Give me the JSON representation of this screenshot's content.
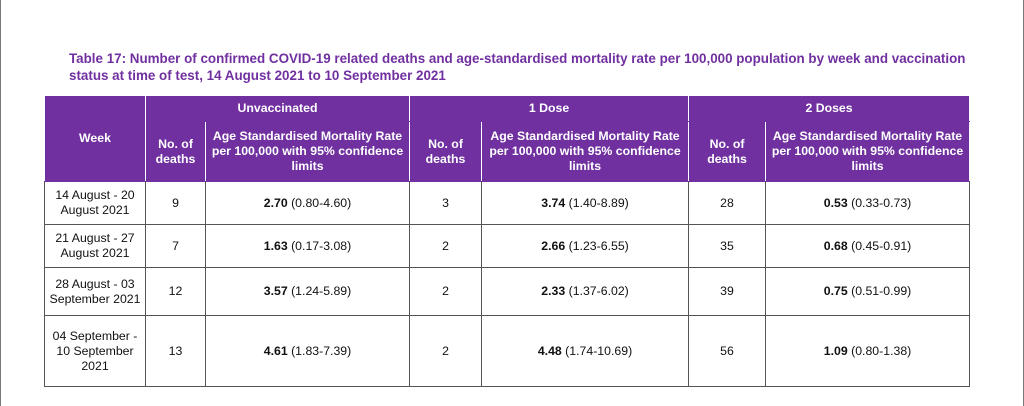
{
  "caption": "Table 17: Number of confirmed COVID-19 related deaths and age-standardised mortality rate per 100,000 population by week and vaccination status at time of test, 14 August 2021 to 10 September 2021",
  "header": {
    "week": "Week",
    "groups": [
      "Unvaccinated",
      "1 Dose",
      "2 Doses"
    ],
    "deaths": "No. of deaths",
    "rate": "Age Standardised Mortality Rate per 100,000 with 95% confidence limits"
  },
  "rows": [
    {
      "week": "14 August - 20 August 2021",
      "unvax_deaths": "9",
      "unvax_rate": "2.70",
      "unvax_ci": " (0.80-4.60)",
      "dose1_deaths": "3",
      "dose1_rate": "3.74",
      "dose1_ci": " (1.40-8.89)",
      "dose2_deaths": "28",
      "dose2_rate": "0.53",
      "dose2_ci": " (0.33-0.73)"
    },
    {
      "week": "21 August - 27 August 2021",
      "unvax_deaths": "7",
      "unvax_rate": "1.63",
      "unvax_ci": " (0.17-3.08)",
      "dose1_deaths": "2",
      "dose1_rate": "2.66",
      "dose1_ci": " (1.23-6.55)",
      "dose2_deaths": "35",
      "dose2_rate": "0.68",
      "dose2_ci": " (0.45-0.91)"
    },
    {
      "week": "28 August - 03 September 2021",
      "unvax_deaths": "12",
      "unvax_rate": "3.57",
      "unvax_ci": " (1.24-5.89)",
      "dose1_deaths": "2",
      "dose1_rate": "2.33",
      "dose1_ci": " (1.37-6.02)",
      "dose2_deaths": "39",
      "dose2_rate": "0.75",
      "dose2_ci": " (0.51-0.99)"
    },
    {
      "week": "04 September - 10 September 2021",
      "unvax_deaths": "13",
      "unvax_rate": "4.61",
      "unvax_ci": " (1.83-7.39)",
      "dose1_deaths": "2",
      "dose1_rate": "4.48",
      "dose1_ci": " (1.74-10.69)",
      "dose2_deaths": "56",
      "dose2_rate": "1.09",
      "dose2_ci": " (0.80-1.38)"
    }
  ]
}
